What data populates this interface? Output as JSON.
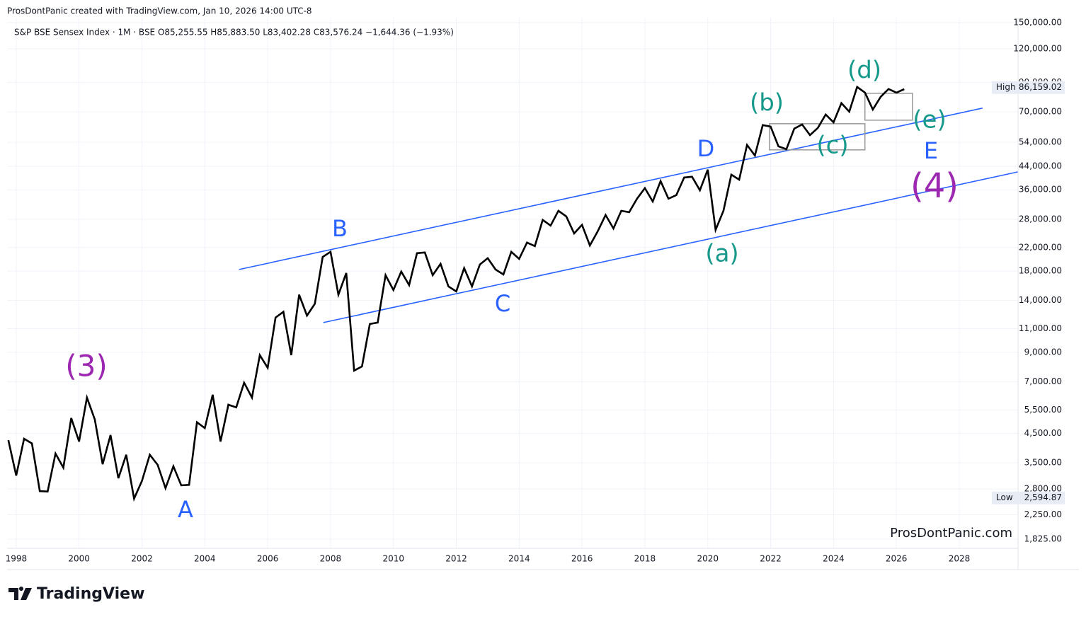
{
  "chart_data": {
    "type": "line",
    "title": "ProsDontPanic created with TradingView.com, Jan 10, 2026 14:00 UTC-8",
    "subtitle": "S&P BSE Sensex Index · 1M · BSE  O85,255.55  H85,883.50  L83,402.28  C83,576.24  −1,644.36 (−1.93%)",
    "watermark": "ProsDontPanic.com",
    "brand": "TradingView",
    "log_scale": true,
    "grid": true,
    "xlim": [
      1997.71,
      2029.87
    ],
    "xticks": [
      1998,
      2000,
      2002,
      2004,
      2006,
      2008,
      2010,
      2012,
      2014,
      2016,
      2018,
      2020,
      2022,
      2024,
      2026,
      2028
    ],
    "ylim": [
      1687,
      156400
    ],
    "yticks": [
      {
        "value": 1825,
        "label": "1,825.00"
      },
      {
        "value": 2250,
        "label": "2,250.00"
      },
      {
        "value": 2800,
        "label": "2,800.00"
      },
      {
        "value": 3500,
        "label": "3,500.00"
      },
      {
        "value": 4500,
        "label": "4,500.00"
      },
      {
        "value": 5500,
        "label": "5,500.00"
      },
      {
        "value": 7000,
        "label": "7,000.00"
      },
      {
        "value": 9000,
        "label": "9,000.00"
      },
      {
        "value": 11000,
        "label": "11,000.00"
      },
      {
        "value": 14000,
        "label": "14,000.00"
      },
      {
        "value": 18000,
        "label": "18,000.00"
      },
      {
        "value": 22000,
        "label": "22,000.00"
      },
      {
        "value": 28000,
        "label": "28,000.00"
      },
      {
        "value": 36000,
        "label": "36,000.00"
      },
      {
        "value": 44000,
        "label": "44,000.00"
      },
      {
        "value": 54000,
        "label": "54,000.00"
      },
      {
        "value": 70000,
        "label": "70,000.00"
      },
      {
        "value": 90000,
        "label": "90,000.00"
      },
      {
        "value": 120000,
        "label": "120,000.00"
      },
      {
        "value": 150000,
        "label": "150,000.00"
      }
    ],
    "series": [
      {
        "name": "S&P BSE Sensex Index",
        "color": "#000000",
        "x": [
          1997.75,
          1998,
          1998.25,
          1998.5,
          1998.75,
          1999,
          1999.25,
          1999.5,
          1999.75,
          2000,
          2000.25,
          2000.5,
          2000.75,
          2001,
          2001.25,
          2001.5,
          2001.75,
          2002,
          2002.25,
          2002.5,
          2002.75,
          2003,
          2003.25,
          2003.5,
          2003.75,
          2004,
          2004.25,
          2004.5,
          2004.75,
          2005,
          2005.25,
          2005.5,
          2005.75,
          2006,
          2006.25,
          2006.5,
          2006.75,
          2007,
          2007.25,
          2007.5,
          2007.75,
          2008,
          2008.25,
          2008.5,
          2008.75,
          2009,
          2009.25,
          2009.5,
          2009.75,
          2010,
          2010.25,
          2010.5,
          2010.75,
          2011,
          2011.25,
          2011.5,
          2011.75,
          2012,
          2012.25,
          2012.5,
          2012.75,
          2013,
          2013.25,
          2013.5,
          2013.75,
          2014,
          2014.25,
          2014.5,
          2014.75,
          2015,
          2015.25,
          2015.5,
          2015.75,
          2016,
          2016.25,
          2016.5,
          2016.75,
          2017,
          2017.25,
          2017.5,
          2017.75,
          2018,
          2018.25,
          2018.5,
          2018.75,
          2019,
          2019.25,
          2019.5,
          2019.75,
          2020,
          2020.25,
          2020.5,
          2020.75,
          2021,
          2021.25,
          2021.5,
          2021.75,
          2022,
          2022.25,
          2022.5,
          2022.75,
          2023,
          2023.25,
          2023.5,
          2023.75,
          2024,
          2024.25,
          2024.5,
          2024.75,
          2025,
          2025.25,
          2025.5,
          2025.75,
          2026,
          2026.25
        ],
        "values": [
          4250,
          3140,
          4300,
          4130,
          2750,
          2740,
          3790,
          3360,
          5130,
          4200,
          6110,
          5070,
          3460,
          4440,
          3070,
          3750,
          2580,
          3000,
          3750,
          3440,
          2820,
          3400,
          2890,
          2900,
          4950,
          4710,
          6260,
          4200,
          5750,
          5620,
          6940,
          6110,
          8780,
          7880,
          12100,
          12700,
          8780,
          14700,
          12300,
          13600,
          20300,
          21200,
          14700,
          17700,
          7690,
          7970,
          11450,
          11590,
          17370,
          15300,
          17910,
          15960,
          20960,
          21080,
          17370,
          19130,
          15780,
          15120,
          18450,
          15780,
          19020,
          20080,
          18230,
          17480,
          21200,
          19960,
          22940,
          22260,
          27830,
          26520,
          30100,
          28670,
          24810,
          26680,
          22390,
          25260,
          29020,
          25880,
          30100,
          29740,
          33370,
          36520,
          32570,
          38790,
          33370,
          34390,
          39980,
          40230,
          35850,
          42730,
          25570,
          30100,
          40960,
          39260,
          52780,
          48230,
          62520,
          61760,
          52150,
          50900,
          60670,
          62890,
          57430,
          61030,
          68440,
          64040,
          75400,
          70140,
          86600,
          82520,
          71420,
          79600,
          85060,
          82520,
          85000
        ]
      }
    ],
    "trendlines": [
      {
        "color": "#2962ff",
        "x": [
          2005.09,
          2028.74
        ],
        "values": [
          18230,
          72270
        ]
      },
      {
        "color": "#2962ff",
        "x": [
          2007.77,
          2029.87
        ],
        "values": [
          11590,
          41950
        ]
      }
    ],
    "boxes": [
      {
        "color": "#999999",
        "x": [
          2021.96,
          2025.0
        ],
        "values": [
          50610,
          63270
        ]
      },
      {
        "color": "#999999",
        "x": [
          2025.0,
          2026.51
        ],
        "values": [
          65210,
          82030
        ]
      }
    ],
    "high": {
      "label": "High",
      "value": 86159.02,
      "value_label": "86,159.02"
    },
    "low": {
      "label": "Low",
      "value": 2594.87,
      "value_label": "2,594.87"
    },
    "annotations": [
      {
        "text": "(3)",
        "color": "#9c27b0"
      },
      {
        "text": "A",
        "color": "#2962ff"
      },
      {
        "text": "B",
        "color": "#2962ff"
      },
      {
        "text": "C",
        "color": "#2962ff"
      },
      {
        "text": "D",
        "color": "#2962ff"
      },
      {
        "text": "E",
        "color": "#2962ff"
      },
      {
        "text": "(4)",
        "color": "#9c27b0"
      },
      {
        "text": "(a)",
        "color": "#16998a"
      },
      {
        "text": "(b)",
        "color": "#16998a"
      },
      {
        "text": "(c)",
        "color": "#16998a"
      },
      {
        "text": "(d)",
        "color": "#16998a"
      },
      {
        "text": "(e)",
        "color": "#16998a"
      }
    ]
  }
}
